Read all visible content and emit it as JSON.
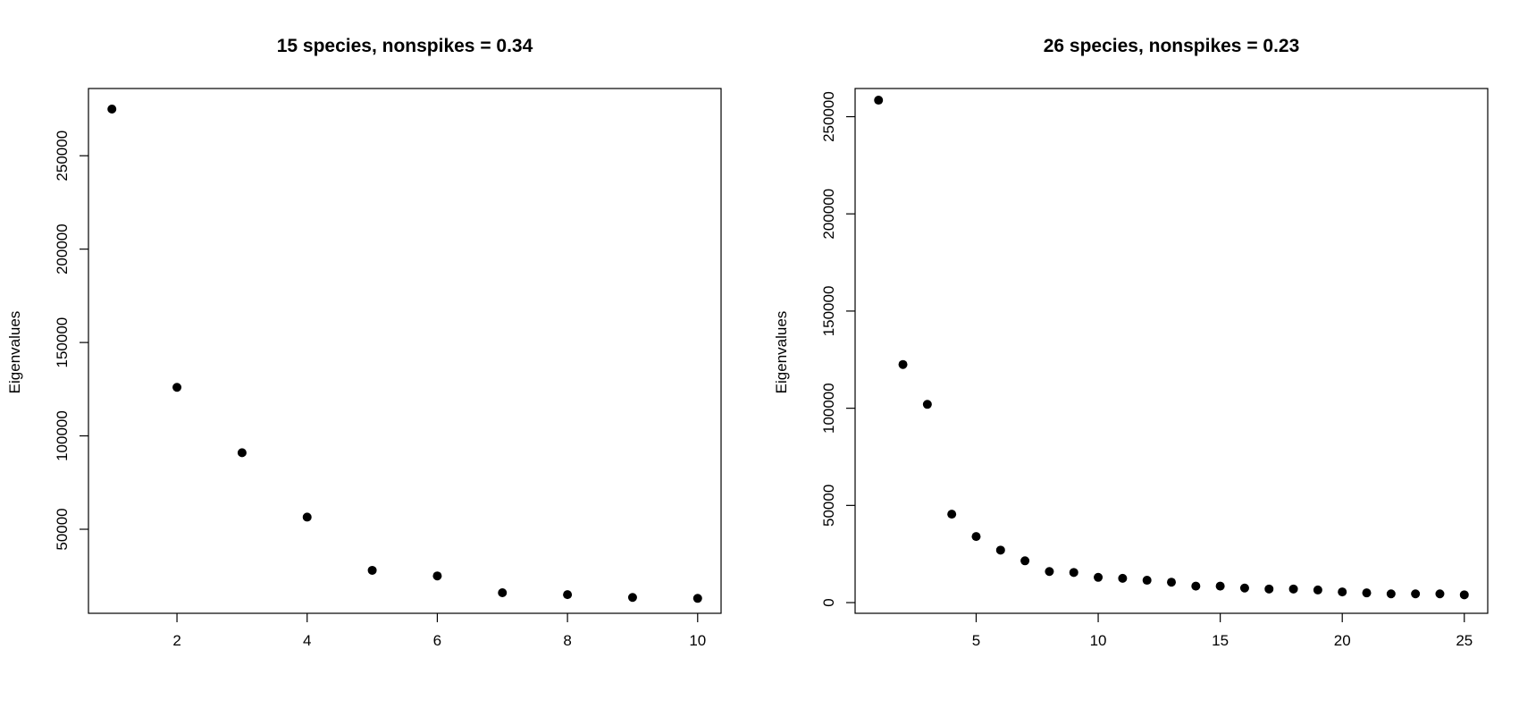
{
  "chart_data": [
    {
      "type": "scatter",
      "title": "15 species, nonspikes = 0.34",
      "xlabel": "",
      "ylabel": "Eigenvalues",
      "x": [
        1,
        2,
        3,
        4,
        5,
        6,
        7,
        8,
        9,
        10
      ],
      "y": [
        275000,
        126000,
        91000,
        56500,
        28000,
        25000,
        16000,
        15000,
        13500,
        13000
      ],
      "xlim": [
        0.64,
        10.36
      ],
      "ylim": [
        5000,
        286000
      ],
      "xticks": [
        2,
        4,
        6,
        8,
        10
      ],
      "yticks": [
        50000,
        100000,
        150000,
        200000,
        250000
      ],
      "xtick_labels": [
        "2",
        "4",
        "6",
        "8",
        "10"
      ],
      "ytick_labels": [
        "50000",
        "100000",
        "150000",
        "200000",
        "250000"
      ],
      "marker_color": "#000000",
      "grid": false
    },
    {
      "type": "scatter",
      "title": "26 species, nonspikes = 0.23",
      "xlabel": "",
      "ylabel": "Eigenvalues",
      "x": [
        1,
        2,
        3,
        4,
        5,
        6,
        7,
        8,
        9,
        10,
        11,
        12,
        13,
        14,
        15,
        16,
        17,
        18,
        19,
        20,
        21,
        22,
        23,
        24,
        25
      ],
      "y": [
        258500,
        122500,
        102000,
        45500,
        34000,
        27000,
        21500,
        16000,
        15500,
        13000,
        12500,
        11500,
        10500,
        8500,
        8500,
        7500,
        7000,
        7000,
        6500,
        5500,
        5000,
        4500,
        4500,
        4500,
        4000
      ],
      "xlim": [
        0.04,
        25.96
      ],
      "ylim": [
        -5500,
        264500
      ],
      "xticks": [
        5,
        10,
        15,
        20,
        25
      ],
      "yticks": [
        0,
        50000,
        100000,
        150000,
        200000,
        250000
      ],
      "xtick_labels": [
        "5",
        "10",
        "15",
        "20",
        "25"
      ],
      "ytick_labels": [
        "0",
        "50000",
        "100000",
        "150000",
        "200000",
        "250000"
      ],
      "marker_color": "#000000",
      "grid": false
    }
  ]
}
